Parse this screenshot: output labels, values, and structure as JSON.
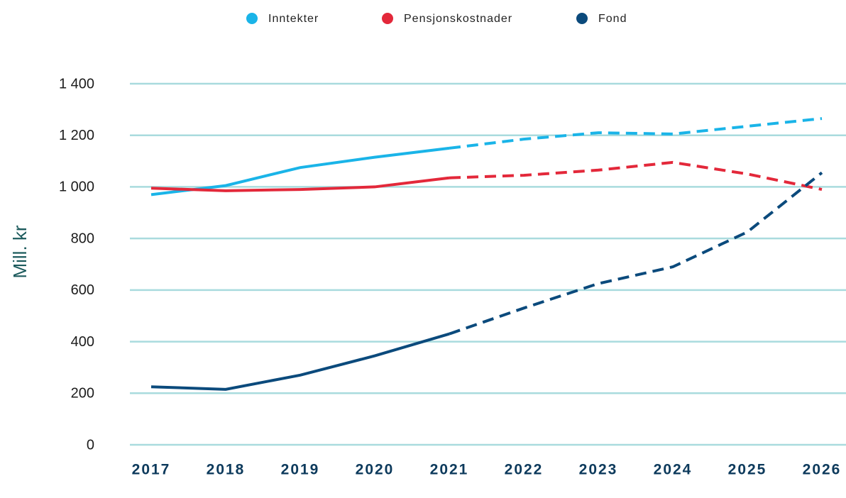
{
  "chart_data": {
    "type": "line",
    "y_label": "Mill. kr",
    "categories": [
      "2017",
      "2018",
      "2019",
      "2020",
      "2021",
      "2022",
      "2023",
      "2024",
      "2025",
      "2026"
    ],
    "dashed_from": "2021",
    "series": [
      {
        "name": "Inntekter",
        "color": "#1ab4e8",
        "values": [
          970,
          1005,
          1075,
          1115,
          1150,
          1185,
          1210,
          1205,
          1235,
          1265
        ]
      },
      {
        "name": "Pensjonskostnader",
        "color": "#e3283a",
        "values": [
          995,
          985,
          990,
          1000,
          1035,
          1045,
          1065,
          1095,
          1050,
          990
        ]
      },
      {
        "name": "Fond",
        "color": "#0b4a7c",
        "values": [
          225,
          215,
          270,
          345,
          430,
          530,
          625,
          690,
          825,
          1055
        ]
      }
    ],
    "ylim": [
      0,
      1400
    ],
    "yticks": [
      0,
      200,
      400,
      600,
      800,
      {
        "value": 1000,
        "label": "1 000"
      },
      {
        "value": 1200,
        "label": "1 200"
      },
      {
        "value": 1400,
        "label": "1 400"
      }
    ],
    "grid": true,
    "grid_color": "#a9dbde",
    "legend": "top"
  }
}
